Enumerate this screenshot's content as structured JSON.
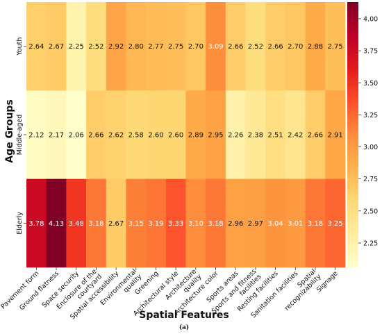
{
  "chart_data": {
    "type": "heatmap",
    "title": "",
    "xlabel": "Spatial Features",
    "ylabel": "Age Groups",
    "caption": "(a)",
    "x": [
      "Pavement form",
      "Ground flatness",
      "Space security",
      "Enclosure of the courtyard",
      "Spatial accessibility",
      "Environmental quality",
      "Greening",
      "Architectural style",
      "Architecture quality",
      "Architecture color",
      "Sports areas",
      "Sports and fitness facilities",
      "Resting facilities",
      "Sanitation facilities",
      "Spatial recognizability",
      "Signage"
    ],
    "y": [
      "Youth",
      "Middle-aged",
      "Elderly"
    ],
    "values": [
      [
        2.64,
        2.67,
        2.25,
        2.52,
        2.92,
        2.8,
        2.77,
        2.75,
        2.7,
        3.09,
        2.66,
        2.52,
        2.66,
        2.7,
        2.88,
        2.75
      ],
      [
        2.12,
        2.17,
        2.06,
        2.66,
        2.62,
        2.58,
        2.6,
        2.6,
        2.89,
        2.95,
        2.26,
        2.38,
        2.51,
        2.42,
        2.66,
        2.91
      ],
      [
        3.78,
        4.13,
        3.48,
        3.18,
        2.67,
        3.15,
        3.19,
        3.33,
        3.1,
        3.18,
        2.96,
        2.97,
        3.04,
        3.01,
        3.18,
        3.25
      ]
    ],
    "x_tick_labels": [
      [
        "Pavement form"
      ],
      [
        "Ground flatness"
      ],
      [
        "Space security"
      ],
      [
        "Enclosure of the",
        "courtyard"
      ],
      [
        "Spatial accessibility"
      ],
      [
        "Environmental",
        "quality"
      ],
      [
        "Greening"
      ],
      [
        "Architectural style"
      ],
      [
        "Architecture",
        "quality"
      ],
      [
        "Architecture color"
      ],
      [
        "Sports areas"
      ],
      [
        "Sports and fitness",
        "facilities"
      ],
      [
        "Resting facilities"
      ],
      [
        "Sanitation facilities"
      ],
      [
        "Spatial",
        "recognizability"
      ],
      [
        "Signage"
      ]
    ],
    "colorbar": {
      "colormap": "YlOrRd",
      "range": [
        2.06,
        4.13
      ],
      "ticks": [
        "2.25",
        "2.50",
        "2.75",
        "3.00",
        "3.25",
        "3.50",
        "3.75",
        "4.00"
      ],
      "tick_values": [
        2.25,
        2.5,
        2.75,
        3.0,
        3.25,
        3.5,
        3.75,
        4.0
      ]
    },
    "colors": {
      "low": "#ffffcc",
      "high": "#800026",
      "light_text": "#ffffff",
      "dark_text": "#111111"
    }
  }
}
